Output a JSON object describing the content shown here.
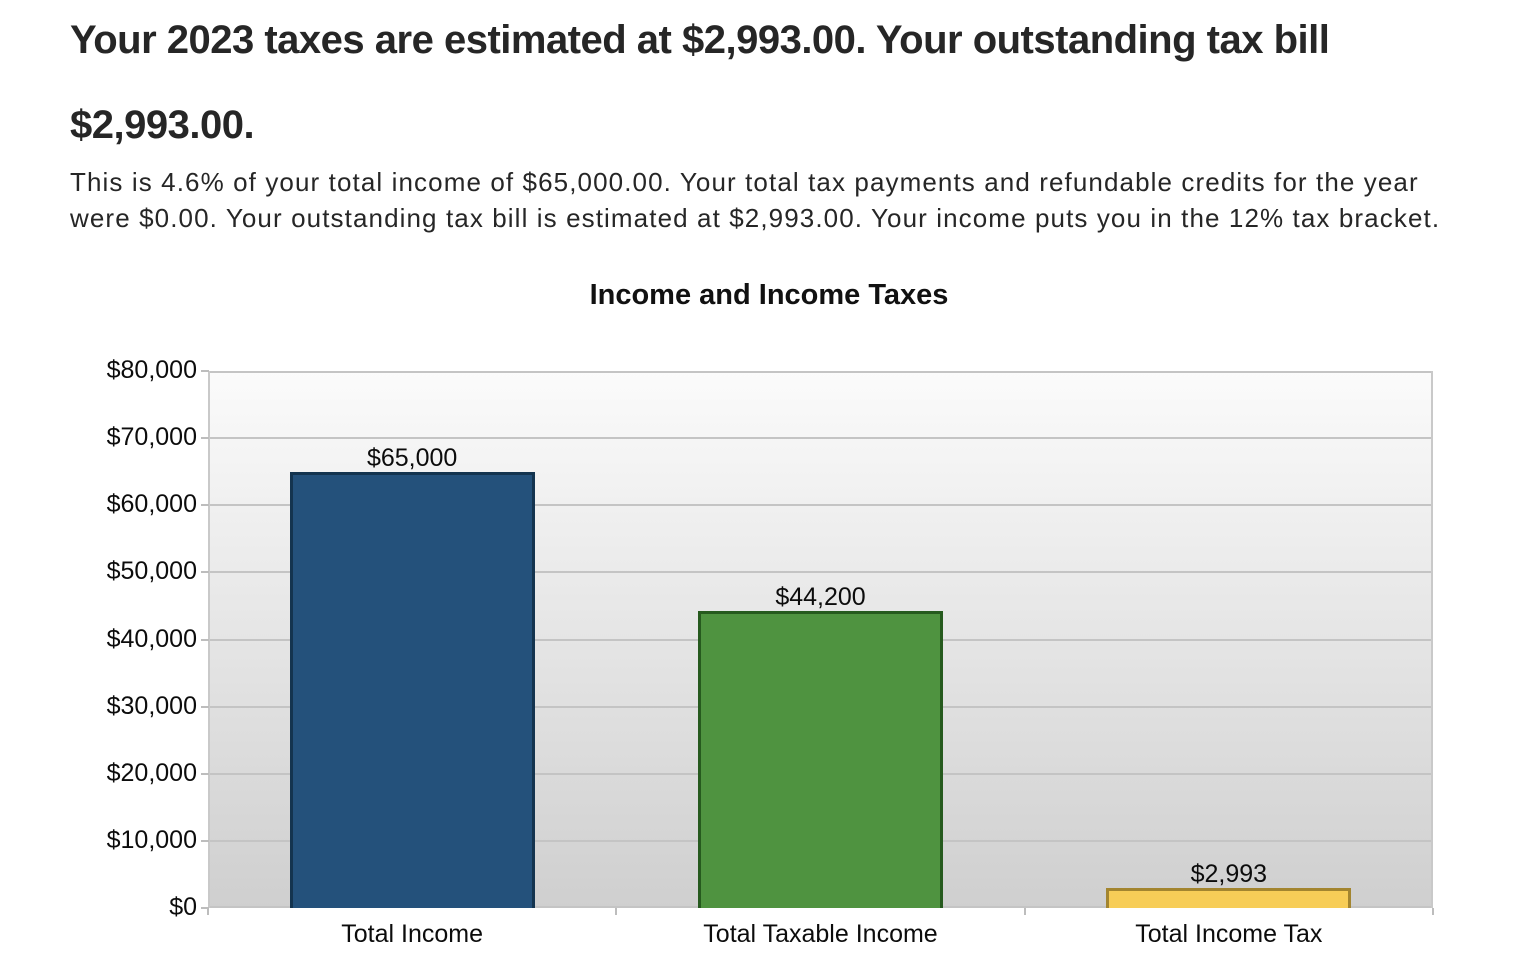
{
  "header": {
    "title_line1": "Your 2023 taxes are estimated at $2,993.00. Your outstanding tax bill",
    "title_line2": "$2,993.00.",
    "body_line1": "This is 4.6% of your total income of $65,000.00. Your total tax payments and refundable credits for the year",
    "body_line2": "were $0.00. Your outstanding tax bill is estimated at $2,993.00. Your income puts you in the 12% tax bracket."
  },
  "chart_data": {
    "type": "bar",
    "title": "Income and Income Taxes",
    "categories": [
      "Total Income",
      "Total Taxable Income",
      "Total Income Tax"
    ],
    "values": [
      65000,
      44200,
      2993
    ],
    "value_labels": [
      "$65,000",
      "$44,200",
      "$2,993"
    ],
    "bar_colors": [
      "#24517b",
      "#4f9340",
      "#f7cd57"
    ],
    "bar_border_colors": [
      "#14344f",
      "#265a1e",
      "#a3852f"
    ],
    "xlabel": "",
    "ylabel": "",
    "ylim": [
      0,
      80000
    ],
    "ytick_step": 10000,
    "ytick_labels": [
      "$0",
      "$10,000",
      "$20,000",
      "$30,000",
      "$40,000",
      "$50,000",
      "$60,000",
      "$70,000",
      "$80,000"
    ],
    "grid": true,
    "legend": "none",
    "plot_bg_top": "#fbfbfb",
    "plot_bg_bottom": "#cfcfcf"
  }
}
